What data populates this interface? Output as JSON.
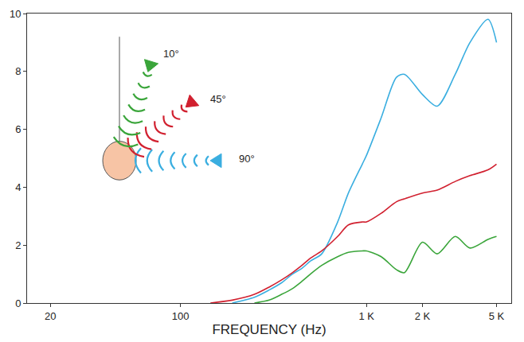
{
  "chart_data": {
    "type": "line",
    "x_label": "FREQUENCY (Hz)",
    "log": "x",
    "grid": false,
    "line_style": "smooth",
    "xlim": [
      15,
      6000
    ],
    "xticks": [
      20,
      100,
      {
        "value": 1000,
        "label": "1 K"
      },
      {
        "value": 2000,
        "label": "2 K"
      },
      {
        "value": 5000,
        "label": "5 K"
      }
    ],
    "ylim": [
      0,
      10
    ],
    "yticks": [
      0,
      2,
      4,
      6,
      8,
      10
    ],
    "x": [
      20,
      50,
      100,
      145,
      190,
      250,
      300,
      350,
      400,
      450,
      500,
      575,
      700,
      800,
      950,
      1000,
      1200,
      1450,
      1600,
      2000,
      2400,
      3000,
      3600,
      4500,
      5000
    ],
    "series": [
      {
        "name": "90°",
        "color": "#3aaee0",
        "values": [
          null,
          null,
          null,
          null,
          0,
          0.2,
          0.45,
          0.7,
          1.0,
          1.2,
          1.45,
          1.7,
          2.8,
          3.8,
          4.8,
          5.1,
          6.4,
          7.8,
          7.9,
          7.2,
          6.8,
          7.9,
          9.0,
          9.8,
          9.0
        ]
      },
      {
        "name": "45°",
        "color": "#d1202f",
        "values": [
          null,
          null,
          null,
          0,
          0.1,
          0.3,
          0.55,
          0.8,
          1.05,
          1.3,
          1.55,
          1.8,
          2.3,
          2.7,
          2.8,
          2.8,
          3.1,
          3.5,
          3.6,
          3.8,
          3.9,
          4.2,
          4.4,
          4.6,
          4.8
        ]
      },
      {
        "name": "10°",
        "color": "#3aa53a",
        "values": [
          null,
          null,
          null,
          null,
          null,
          0,
          0.1,
          0.3,
          0.5,
          0.75,
          1.0,
          1.3,
          1.6,
          1.75,
          1.8,
          1.8,
          1.6,
          1.15,
          1.05,
          2.1,
          1.7,
          2.3,
          1.9,
          2.2,
          2.3
        ]
      }
    ]
  }
}
